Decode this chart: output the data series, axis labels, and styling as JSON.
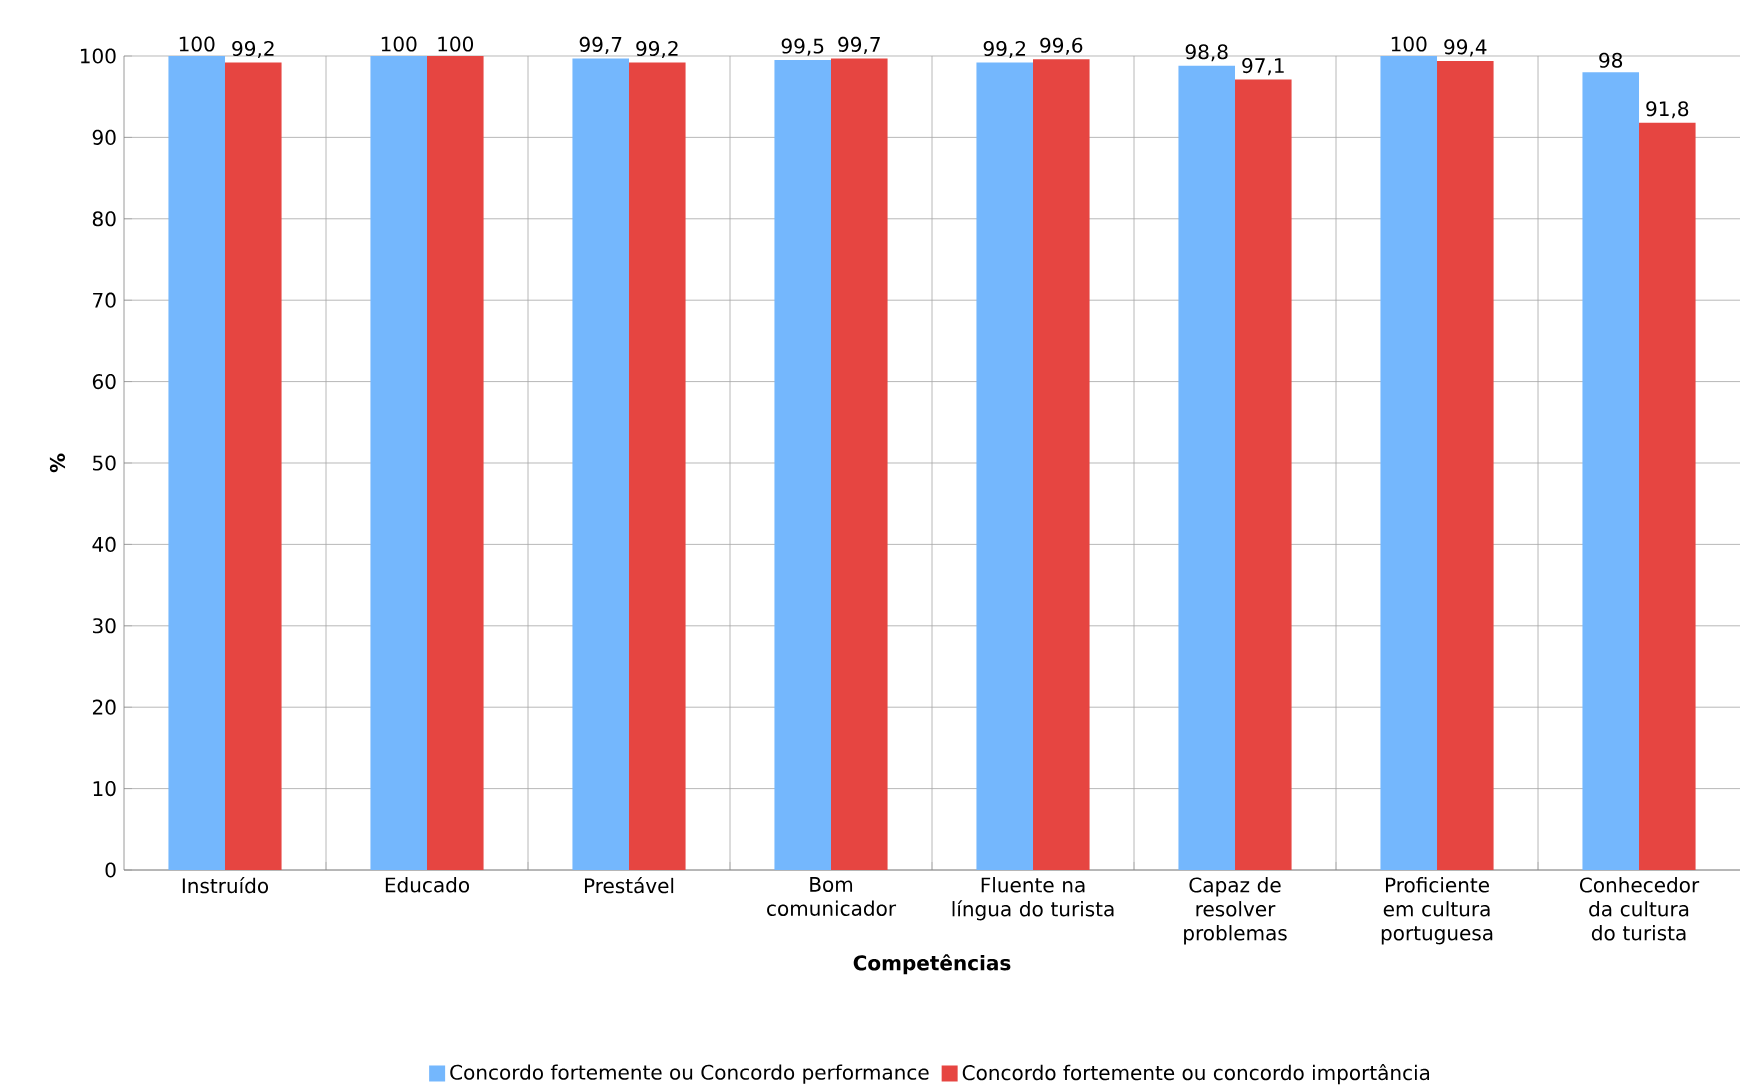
{
  "chart_data": {
    "type": "bar",
    "categories": [
      "Instruído",
      "Educado",
      "Prestável",
      "Bom comunicador",
      "Fluente na língua do turista",
      "Capaz de resolver problemas",
      "Proficiente em cultura portuguesa",
      "Conhecedor da cultura do turista"
    ],
    "series": [
      {
        "name": "Concordo fortemente ou Concordo performance",
        "color": "#74b7fd",
        "values": [
          100,
          100,
          99.7,
          99.5,
          99.2,
          98.8,
          100,
          98
        ],
        "value_labels": [
          "100",
          "100",
          "99,7",
          "99,5",
          "99,2",
          "98,8",
          "100",
          "98"
        ]
      },
      {
        "name": "Concordo fortemente ou concordo importância",
        "color": "#e64541",
        "values": [
          99.2,
          100,
          99.2,
          99.7,
          99.6,
          97.1,
          99.4,
          91.8
        ],
        "value_labels": [
          "99,2",
          "100",
          "99,2",
          "99,7",
          "99,6",
          "97,1",
          "99,4",
          "91,8"
        ]
      }
    ],
    "xlabel": "Competências",
    "ylabel": "%",
    "ylim": [
      0,
      100
    ],
    "yticks": [
      0,
      10,
      20,
      30,
      40,
      50,
      60,
      70,
      80,
      90,
      100
    ],
    "grid": true,
    "legend": "bottom"
  }
}
